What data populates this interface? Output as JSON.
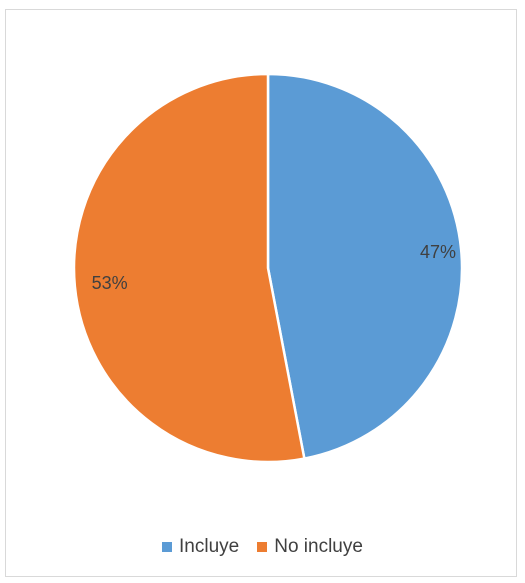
{
  "chart_data": {
    "type": "pie",
    "title": "",
    "categories": [
      "Incluye",
      "No incluye"
    ],
    "values": [
      47,
      53
    ],
    "data_labels": [
      "47%",
      "53%"
    ],
    "colors": [
      "#5b9bd5",
      "#ed7d31"
    ],
    "legend_position": "bottom",
    "start_angle": "12 o'clock",
    "direction": "clockwise"
  }
}
